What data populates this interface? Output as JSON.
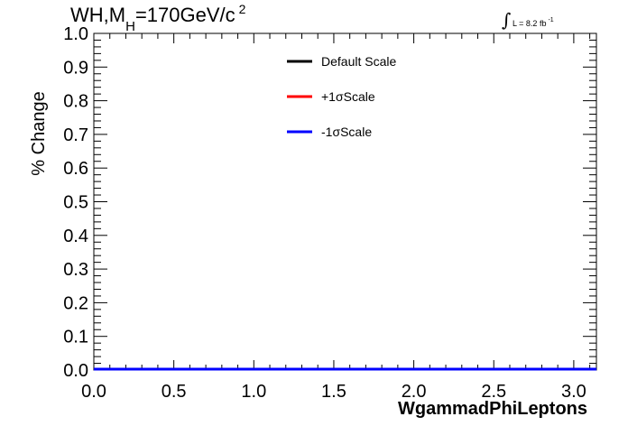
{
  "title": {
    "main": "WH,M",
    "sub": "H",
    "rest": "=170GeV/c",
    "sup": "2"
  },
  "lumi": {
    "integral": "∫",
    "text": "L = 8.2 fb",
    "sup": "-1"
  },
  "chart_data": {
    "type": "line",
    "xlabel": "WgammadPhiLeptons",
    "ylabel": "% Change",
    "xlim": [
      0,
      3.14159
    ],
    "ylim": [
      0,
      1.0
    ],
    "x_ticks": [
      "0.0",
      "0.5",
      "1.0",
      "1.5",
      "2.0",
      "2.5",
      "3.0"
    ],
    "x_tick_values": [
      0,
      0.5,
      1.0,
      1.5,
      2.0,
      2.5,
      3.0
    ],
    "y_ticks": [
      "0.0",
      "0.1",
      "0.2",
      "0.3",
      "0.4",
      "0.5",
      "0.6",
      "0.7",
      "0.8",
      "0.9",
      "1.0"
    ],
    "y_tick_values": [
      0,
      0.1,
      0.2,
      0.3,
      0.4,
      0.5,
      0.6,
      0.7,
      0.8,
      0.9,
      1.0
    ],
    "legend_position": "top-center",
    "series": [
      {
        "name": "Default Scale",
        "color": "#000000",
        "x": [
          0,
          3.14159
        ],
        "y": [
          0,
          0
        ]
      },
      {
        "name": "+1σScale",
        "color": "#ff0000",
        "x": [
          0,
          3.14159
        ],
        "y": [
          0,
          0
        ]
      },
      {
        "name": "-1σScale",
        "color": "#0000ff",
        "x": [
          0,
          3.14159
        ],
        "y": [
          0,
          0
        ]
      }
    ]
  }
}
